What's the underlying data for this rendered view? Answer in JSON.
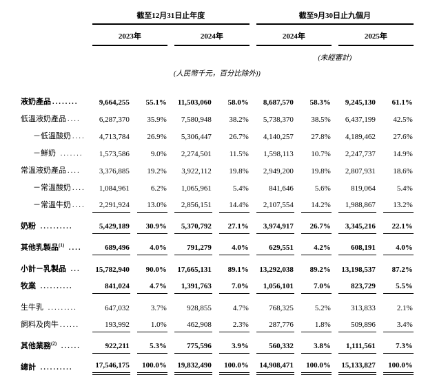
{
  "header": {
    "group1": "截至12月31日止年度",
    "group2": "截至9月30日止九個月",
    "years": [
      "2023年",
      "2024年",
      "2024年",
      "2025年"
    ],
    "unaudited_note": "(未經審計)",
    "unit_note": "(人民幣千元，百分比除外))"
  },
  "table": {
    "rows": [
      {
        "label": "液奶產品",
        "sup": "",
        "dots": "........",
        "indent": 0,
        "bold": true,
        "underline": "none",
        "values": [
          "9,664,255",
          "55.1%",
          "11,503,060",
          "58.0%",
          "8,687,570",
          "58.3%",
          "9,245,130",
          "61.1%"
        ]
      },
      {
        "label": "低溫液奶產品",
        "sup": "",
        "dots": "....",
        "indent": 0,
        "bold": false,
        "underline": "none",
        "values": [
          "6,287,370",
          "35.9%",
          "7,580,948",
          "38.2%",
          "5,738,370",
          "38.5%",
          "6,437,199",
          "42.5%"
        ]
      },
      {
        "label": "－低溫酸奶",
        "sup": "",
        "dots": "....",
        "indent": 1,
        "bold": false,
        "underline": "none",
        "values": [
          "4,713,784",
          "26.9%",
          "5,306,447",
          "26.7%",
          "4,140,257",
          "27.8%",
          "4,189,462",
          "27.6%"
        ]
      },
      {
        "label": "－鮮奶",
        "sup": "",
        "dots": " .......",
        "indent": 1,
        "bold": false,
        "underline": "none",
        "values": [
          "1,573,586",
          "9.0%",
          "2,274,501",
          "11.5%",
          "1,598,113",
          "10.7%",
          "2,247,737",
          "14.9%"
        ]
      },
      {
        "label": "常溫液奶產品",
        "sup": "",
        "dots": "....",
        "indent": 0,
        "bold": false,
        "underline": "none",
        "values": [
          "3,376,885",
          "19.2%",
          "3,922,112",
          "19.8%",
          "2,949,200",
          "19.8%",
          "2,807,931",
          "18.6%"
        ]
      },
      {
        "label": "－常溫酸奶",
        "sup": "",
        "dots": "....",
        "indent": 1,
        "bold": false,
        "underline": "none",
        "values": [
          "1,084,961",
          "6.2%",
          "1,065,961",
          "5.4%",
          "841,646",
          "5.6%",
          "819,064",
          "5.4%"
        ]
      },
      {
        "label": "－常溫牛奶",
        "sup": "",
        "dots": "....",
        "indent": 1,
        "bold": false,
        "underline": "single",
        "values": [
          "2,291,924",
          "13.0%",
          "2,856,151",
          "14.4%",
          "2,107,554",
          "14.2%",
          "1,988,867",
          "13.2%"
        ]
      },
      {
        "label": "奶粉",
        "sup": "",
        "dots": " ..........",
        "indent": 0,
        "bold": true,
        "underline": "single",
        "values": [
          "5,429,189",
          "30.9%",
          "5,370,792",
          "27.1%",
          "3,974,917",
          "26.7%",
          "3,345,216",
          "22.1%"
        ]
      },
      {
        "label": "其他乳製品",
        "sup": "(1)",
        "dots": " ....",
        "indent": 0,
        "bold": true,
        "underline": "single",
        "values": [
          "689,496",
          "4.0%",
          "791,279",
          "4.0%",
          "629,551",
          "4.2%",
          "608,191",
          "4.0%"
        ]
      },
      {
        "label": "小計－乳製品",
        "sup": "",
        "dots": " ...",
        "indent": 0,
        "bold": true,
        "underline": "none",
        "values": [
          "15,782,940",
          "90.0%",
          "17,665,131",
          "89.1%",
          "13,292,038",
          "89.2%",
          "13,198,537",
          "87.2%"
        ]
      },
      {
        "label": "牧業",
        "sup": "",
        "dots": " ..........",
        "indent": 0,
        "bold": true,
        "underline": "single",
        "values": [
          "841,024",
          "4.7%",
          "1,391,763",
          "7.0%",
          "1,056,101",
          "7.0%",
          "823,729",
          "5.5%"
        ]
      },
      {
        "label": "生牛乳",
        "sup": "",
        "dots": " .........",
        "indent": 0,
        "bold": false,
        "underline": "none",
        "values": [
          "647,032",
          "3.7%",
          "928,855",
          "4.7%",
          "768,325",
          "5.2%",
          "313,833",
          "2.1%"
        ]
      },
      {
        "label": "飼料及肉牛",
        "sup": "",
        "dots": "......",
        "indent": 0,
        "bold": false,
        "underline": "single",
        "values": [
          "193,992",
          "1.0%",
          "462,908",
          "2.3%",
          "287,776",
          "1.8%",
          "509,896",
          "3.4%"
        ]
      },
      {
        "label": "其他業務",
        "sup": "(2)",
        "dots": " ......",
        "indent": 0,
        "bold": true,
        "underline": "single",
        "values": [
          "922,211",
          "5.3%",
          "775,596",
          "3.9%",
          "560,332",
          "3.8%",
          "1,111,561",
          "7.3%"
        ]
      },
      {
        "label": "總計",
        "sup": "",
        "dots": " ..........",
        "indent": 0,
        "bold": true,
        "underline": "double",
        "values": [
          "17,546,175",
          "100.0%",
          "19,832,490",
          "100.0%",
          "14,908,471",
          "100.0%",
          "15,133,827",
          "100.0%"
        ]
      }
    ]
  }
}
